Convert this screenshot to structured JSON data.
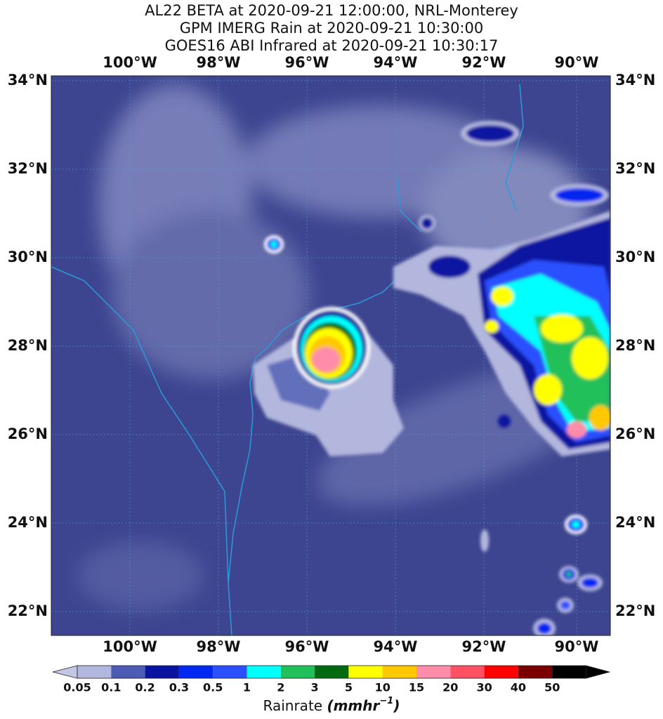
{
  "title": [
    "AL22 BETA at 2020-09-21 12:00:00, NRL-Monterey",
    "GPM IMERG Rain at 2020-09-21 10:30:00",
    "GOES16 ABI Infrared at 2020-09-21 10:30:17"
  ],
  "map": {
    "lon_labels": [
      "100°W",
      "98°W",
      "96°W",
      "94°W",
      "92°W",
      "90°W"
    ],
    "lat_labels": [
      "34°N",
      "32°N",
      "30°N",
      "28°N",
      "26°N",
      "24°N",
      "22°N"
    ]
  },
  "colorbar": {
    "ticks": [
      "0.05",
      "0.1",
      "0.2",
      "0.3",
      "0.5",
      "1",
      "2",
      "3",
      "5",
      "10",
      "15",
      "20",
      "30",
      "40",
      "50"
    ],
    "colors": [
      "#c4c6e6",
      "#b4b7dd",
      "#4c5cb4",
      "#0a14a0",
      "#0028f0",
      "#2c50ff",
      "#00ffff",
      "#22c05a",
      "#006a10",
      "#ffff00",
      "#ffc800",
      "#ff8ca8",
      "#ff5064",
      "#ff0000",
      "#7a0000",
      "#000000"
    ],
    "label": "Rainrate",
    "unit": "(mmhr",
    "unit_exp": "−1",
    "unit_close": ")"
  }
}
